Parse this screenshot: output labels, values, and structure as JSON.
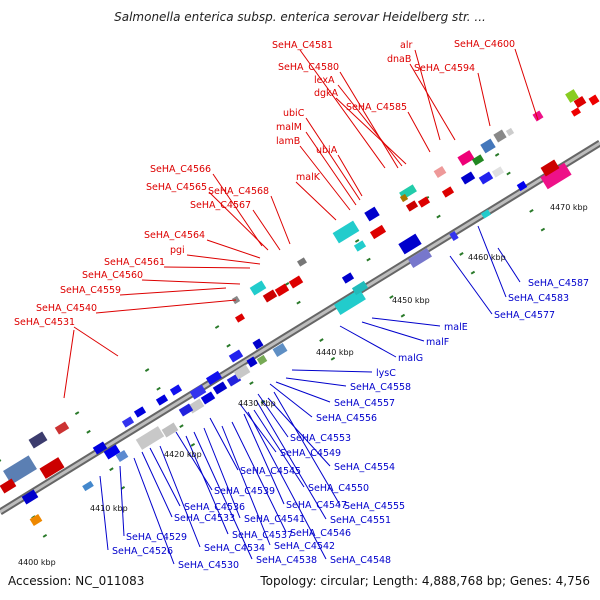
{
  "title": "Salmonella enterica subsp. enterica serovar Heidelberg str. ...",
  "footer": {
    "accession": "Accession: NC_011083",
    "summary": "Topology: circular; Length: 4,888,768 bp; Genes: 4,756"
  },
  "colors": {
    "forward_label": "#dd0000",
    "reverse_label": "#0000cc",
    "backbone": "#888888",
    "ticks": "#2a7a2a"
  },
  "kbp_marks": [
    "4400 kbp",
    "4410 kbp",
    "4420 kbp",
    "4430 kbp",
    "4440 kbp",
    "4450 kbp",
    "4460 kbp",
    "4470 kbp"
  ],
  "forward_labels": [
    "SeHA_C4581",
    "alr",
    "SeHA_C4600",
    "dnaB",
    "SeHA_C4594",
    "SeHA_C4580",
    "lexA",
    "dgkA",
    "SeHA_C4585",
    "ubiC",
    "malM",
    "lamB",
    "ubiA",
    "SeHA_C4566",
    "malK",
    "SeHA_C4565",
    "SeHA_C4568",
    "SeHA_C4567",
    "SeHA_C4564",
    "pgi",
    "SeHA_C4561",
    "SeHA_C4560",
    "SeHA_C4559",
    "SeHA_C4540",
    "SeHA_C4531"
  ],
  "reverse_labels": [
    "SeHA_C4587",
    "SeHA_C4583",
    "SeHA_C4577",
    "malE",
    "malF",
    "malG",
    "lysC",
    "SeHA_C4558",
    "SeHA_C4557",
    "SeHA_C4556",
    "SeHA_C4553",
    "SeHA_C4549",
    "SeHA_C4554",
    "SeHA_C4545",
    "SeHA_C4550",
    "SeHA_C4539",
    "SeHA_C4547",
    "SeHA_C4555",
    "SeHA_C4536",
    "SeHA_C4541",
    "SeHA_C4551",
    "SeHA_C4533",
    "SeHA_C4546",
    "SeHA_C4537",
    "SeHA_C4529",
    "SeHA_C4534",
    "SeHA_C4542",
    "SeHA_C4526",
    "SeHA_C4538",
    "SeHA_C4548",
    "SeHA_C4530"
  ]
}
